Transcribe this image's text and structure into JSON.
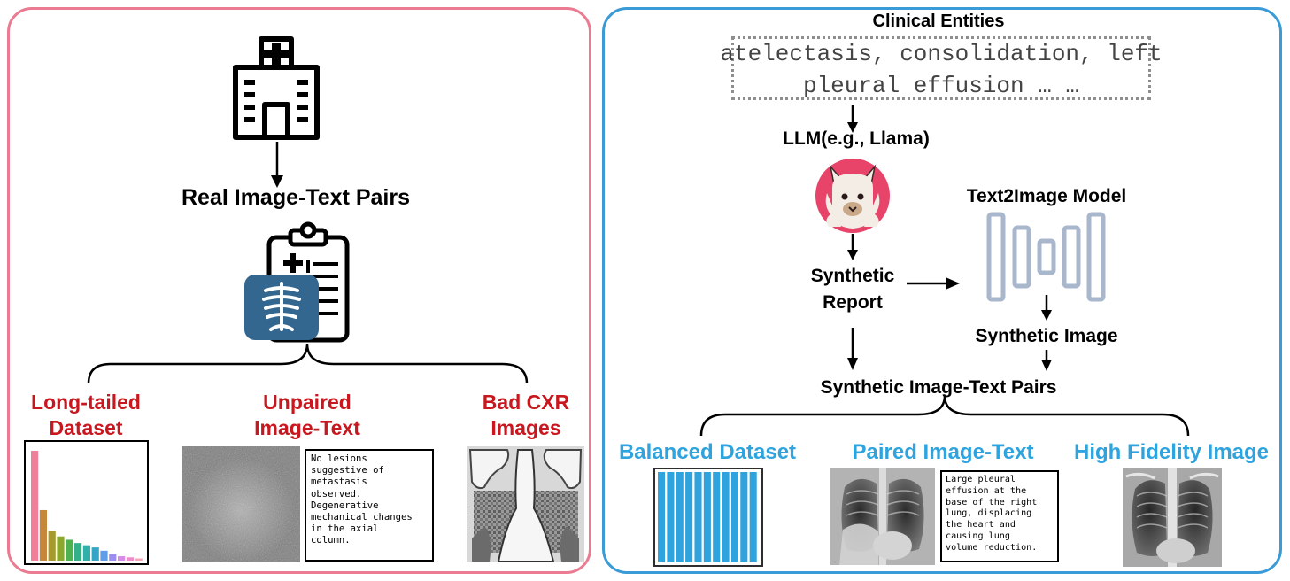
{
  "left_panel": {
    "title": "Real Image-Text Pairs",
    "issues": [
      {
        "label_lines": [
          "Long-tailed",
          "Dataset"
        ]
      },
      {
        "label_lines": [
          "Unpaired",
          "Image-Text"
        ]
      },
      {
        "label_lines": [
          "Bad CXR",
          "Images"
        ]
      }
    ],
    "unpaired_report": "No lesions\nsuggestive of\nmetastasis\nobserved.\nDegenerative\nmechanical changes\nin the axial\ncolumn.",
    "long_tail_values": [
      1.0,
      0.46,
      0.27,
      0.22,
      0.19,
      0.16,
      0.14,
      0.12,
      0.09,
      0.06,
      0.04,
      0.03,
      0.02
    ],
    "long_tail_colors": [
      "#f0809a",
      "#c7873a",
      "#a79a2c",
      "#8aa82c",
      "#4fb04f",
      "#33b08a",
      "#2fb0a8",
      "#33a6c8",
      "#5f9de8",
      "#9b8ef0",
      "#d88ae8",
      "#f08ac8",
      "#f7a4b8"
    ]
  },
  "right_panel": {
    "entities_title": "Clinical Entities",
    "entities_lines": [
      "atelectasis, consolidation, left",
      "pleural effusion … …"
    ],
    "llm_label": "LLM(e.g., Llama)",
    "report_label_lines": [
      "Synthetic",
      "Report"
    ],
    "t2i_label": "Text2Image Model",
    "image_label": "Synthetic Image",
    "pairs_label": "Synthetic Image-Text Pairs",
    "outcomes": [
      {
        "label": "Balanced Dataset"
      },
      {
        "label": "Paired Image-Text"
      },
      {
        "label": "High Fidelity Image"
      }
    ],
    "paired_report": "Large pleural\neffusion at the\nbase of the right\nlung, displacing\nthe heart and\ncausing lung\nvolume reduction.",
    "balanced_bar_count": 11
  },
  "colors": {
    "left_border": "#ea7b91",
    "right_border": "#3a9bd6",
    "issue_text": "#c8171e",
    "outcome_text": "#2ea3dd",
    "xray_badge": "#33678f",
    "llama_circle": "#e8446a",
    "unet_stroke": "#a9b7cc"
  }
}
